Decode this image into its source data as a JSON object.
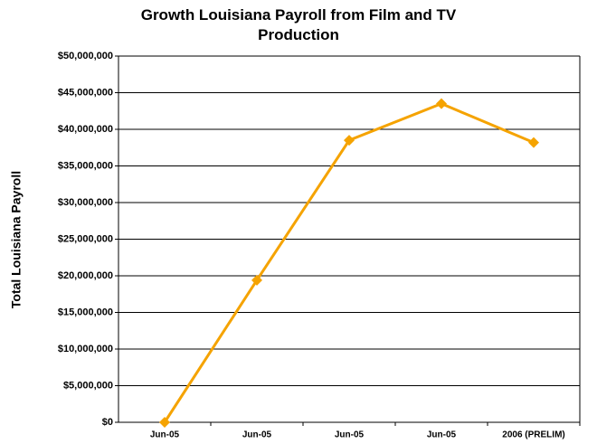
{
  "chart_data": {
    "type": "line",
    "title": "Growth Louisiana Payroll from Film and TV Production",
    "y_label": "Total Louisiana Payroll",
    "categories": [
      "Jun-05",
      "Jun-05",
      "Jun-05",
      "Jun-05",
      "2006 (PRELIM)"
    ],
    "series": [
      {
        "name": "Total Louisiana Payroll",
        "color": "#f5a300",
        "values": [
          0,
          19400000,
          38500000,
          43500000,
          38200000
        ]
      }
    ],
    "ylim": [
      0,
      50000000
    ],
    "yticks": [
      {
        "value": 0,
        "label": "$0"
      },
      {
        "value": 5000000,
        "label": "$5,000,000"
      },
      {
        "value": 10000000,
        "label": "$10,000,000"
      },
      {
        "value": 15000000,
        "label": "$15,000,000"
      },
      {
        "value": 20000000,
        "label": "$20,000,000"
      },
      {
        "value": 25000000,
        "label": "$25,000,000"
      },
      {
        "value": 30000000,
        "label": "$30,000,000"
      },
      {
        "value": 35000000,
        "label": "$35,000,000"
      },
      {
        "value": 40000000,
        "label": "$40,000,000"
      },
      {
        "value": 45000000,
        "label": "$45,000,000"
      },
      {
        "value": 50000000,
        "label": "$50,000,000"
      }
    ],
    "grid": true
  }
}
